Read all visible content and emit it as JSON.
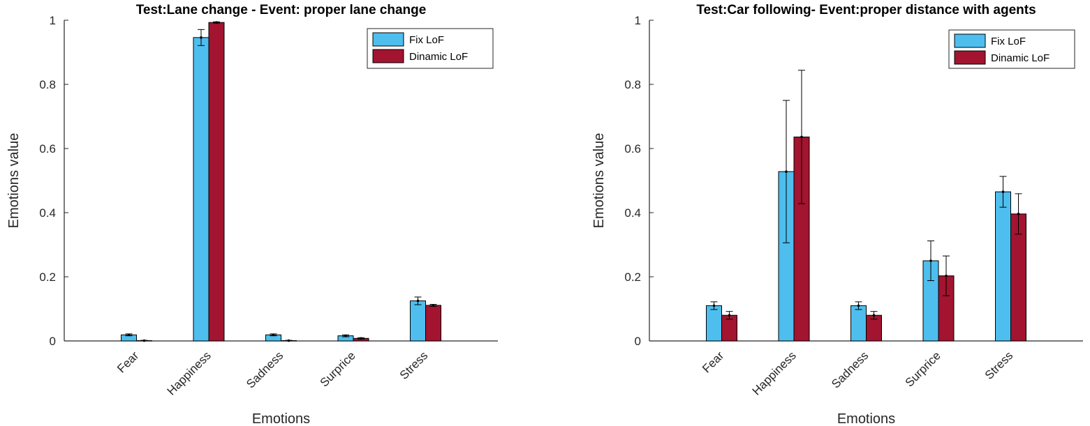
{
  "chart_data": [
    {
      "type": "bar",
      "title": "Test:Lane change - Event: proper lane change",
      "xlabel": "Emotions",
      "ylabel": "Emotions value",
      "ylim": [
        0,
        1
      ],
      "yticks": [
        "0",
        "0.2",
        "0.4",
        "0.6",
        "0.8",
        "1"
      ],
      "categories": [
        "Fear",
        "Happiness",
        "Sadness",
        "Surprice",
        "Stress"
      ],
      "legend_position": "top-right",
      "series": [
        {
          "name": "Fix LoF",
          "color": "#4DBEEE",
          "values": [
            0.019,
            0.946,
            0.019,
            0.016,
            0.125
          ],
          "errors": [
            0.003,
            0.025,
            0.003,
            0.003,
            0.012
          ]
        },
        {
          "name": "Dinamic LoF",
          "color": "#A2142F",
          "values": [
            0.001,
            0.993,
            0.001,
            0.008,
            0.111
          ],
          "errors": [
            0.001,
            0.002,
            0.001,
            0.002,
            0.003
          ]
        }
      ]
    },
    {
      "type": "bar",
      "title": "Test:Car following- Event:proper distance with agents",
      "xlabel": "Emotions",
      "ylabel": "Emotions value",
      "ylim": [
        0,
        1
      ],
      "yticks": [
        "0",
        "0.2",
        "0.4",
        "0.6",
        "0.8",
        "1"
      ],
      "categories": [
        "Fear",
        "Happiness",
        "Sadness",
        "Surprice",
        "Stress"
      ],
      "legend_position": "top-right",
      "series": [
        {
          "name": "Fix LoF",
          "color": "#4DBEEE",
          "values": [
            0.11,
            0.528,
            0.11,
            0.25,
            0.465
          ],
          "errors": [
            0.012,
            0.222,
            0.012,
            0.062,
            0.048
          ]
        },
        {
          "name": "Dinamic LoF",
          "color": "#A2142F",
          "values": [
            0.08,
            0.636,
            0.08,
            0.203,
            0.396
          ],
          "errors": [
            0.012,
            0.208,
            0.012,
            0.062,
            0.063
          ]
        }
      ]
    }
  ]
}
